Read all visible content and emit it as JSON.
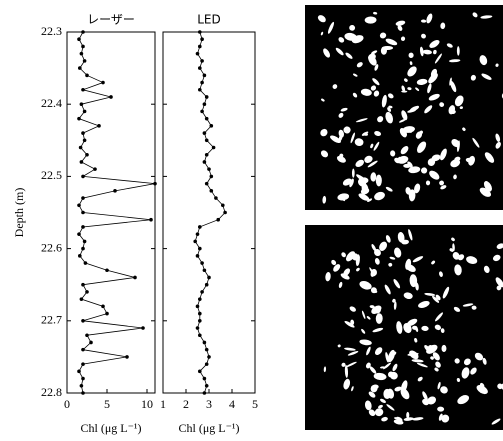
{
  "chart_data": [
    {
      "type": "line",
      "title": "レーザー",
      "xlabel": "Chl (μg L⁻¹)",
      "ylabel": "Depth (m)",
      "color": "#000000",
      "y": [
        22.3,
        22.31,
        22.32,
        22.33,
        22.34,
        22.35,
        22.36,
        22.37,
        22.38,
        22.39,
        22.4,
        22.41,
        22.42,
        22.43,
        22.44,
        22.45,
        22.46,
        22.47,
        22.48,
        22.49,
        22.5,
        22.51,
        22.52,
        22.53,
        22.54,
        22.55,
        22.56,
        22.57,
        22.58,
        22.59,
        22.6,
        22.61,
        22.62,
        22.63,
        22.64,
        22.65,
        22.66,
        22.67,
        22.68,
        22.69,
        22.7,
        22.71,
        22.72,
        22.73,
        22.74,
        22.75,
        22.76,
        22.77,
        22.78,
        22.79,
        22.8
      ],
      "values": [
        2,
        1.5,
        2,
        1.8,
        2.2,
        1.6,
        2.5,
        4.5,
        2,
        5.5,
        1.8,
        2.2,
        1.5,
        4,
        2,
        2.2,
        1.7,
        2.5,
        1.8,
        3.5,
        2,
        11,
        6,
        2,
        1.5,
        2,
        10.5,
        2,
        1.5,
        2.2,
        2,
        1.6,
        2.3,
        5,
        8.5,
        2,
        2.5,
        1.8,
        4.5,
        5,
        2,
        9.5,
        2.5,
        3,
        2,
        7.5,
        2,
        1.5,
        2,
        1.8,
        2
      ],
      "xlim": [
        0,
        11
      ],
      "xticks": [
        0,
        5,
        10
      ],
      "ylim": [
        22.3,
        22.8
      ],
      "yticks": [
        22.3,
        22.4,
        22.5,
        22.6,
        22.7,
        22.8
      ],
      "y_inverted": true,
      "show_ytick_labels": true
    },
    {
      "type": "line",
      "title": "LED",
      "xlabel": "Chl (μg L⁻¹)",
      "color": "#000000",
      "y": [
        22.3,
        22.31,
        22.32,
        22.33,
        22.34,
        22.35,
        22.36,
        22.37,
        22.38,
        22.39,
        22.4,
        22.41,
        22.42,
        22.43,
        22.44,
        22.45,
        22.46,
        22.47,
        22.48,
        22.49,
        22.5,
        22.51,
        22.52,
        22.53,
        22.54,
        22.55,
        22.56,
        22.57,
        22.58,
        22.59,
        22.6,
        22.61,
        22.62,
        22.63,
        22.64,
        22.65,
        22.66,
        22.67,
        22.68,
        22.69,
        22.7,
        22.71,
        22.72,
        22.73,
        22.74,
        22.75,
        22.76,
        22.77,
        22.78,
        22.79,
        22.8
      ],
      "values": [
        2.6,
        2.7,
        2.6,
        2.5,
        2.7,
        2.6,
        2.8,
        2.7,
        2.6,
        2.9,
        2.8,
        2.7,
        2.9,
        3.1,
        2.8,
        2.9,
        3.2,
        2.9,
        2.8,
        3.0,
        3.1,
        2.9,
        3.1,
        3.3,
        3.6,
        3.7,
        3.4,
        2.6,
        2.5,
        2.4,
        2.6,
        2.5,
        2.7,
        2.8,
        3.0,
        2.9,
        2.7,
        2.6,
        2.5,
        2.6,
        2.6,
        2.5,
        2.6,
        2.8,
        2.9,
        3.0,
        2.9,
        2.6,
        2.8,
        2.9,
        2.8
      ],
      "xlim": [
        1,
        5
      ],
      "xticks": [
        1,
        2,
        3,
        4,
        5
      ],
      "ylim": [
        22.3,
        22.8
      ],
      "yticks": [
        22.3,
        22.4,
        22.5,
        22.6,
        22.7,
        22.8
      ],
      "y_inverted": true,
      "show_ytick_labels": false
    }
  ]
}
